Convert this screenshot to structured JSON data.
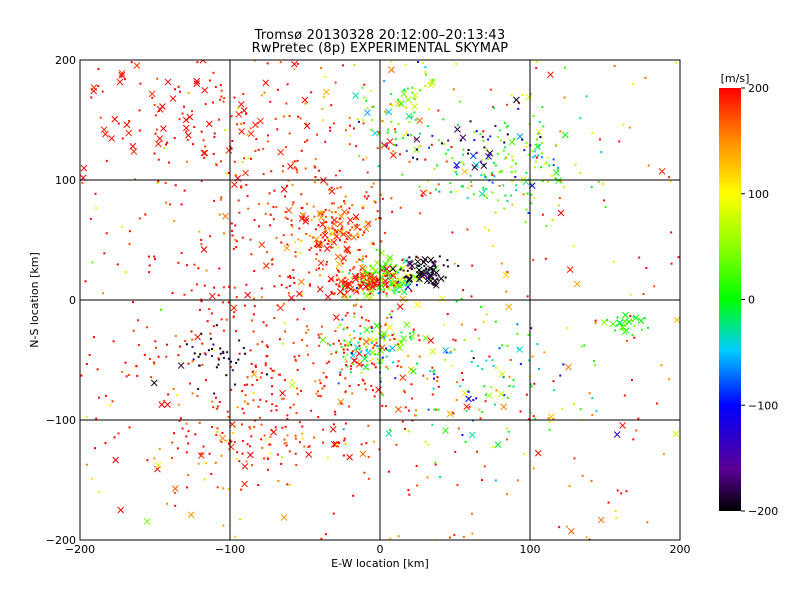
{
  "chart_data": {
    "type": "scatter",
    "title": "Tromsø 20130328 20:12:00–20:13:43",
    "subtitle": "RwPretec (8p) EXPERIMENTAL SKYMAP",
    "xlabel": "E-W location [km]",
    "ylabel": "N-S location [km]",
    "xlim": [
      -200,
      200
    ],
    "ylim": [
      -200,
      200
    ],
    "xticks": [
      -200,
      -100,
      0,
      100,
      200
    ],
    "yticks": [
      -200,
      -100,
      0,
      100,
      200
    ],
    "grid": true,
    "colorbar": {
      "label": "[m/s]",
      "min": -200,
      "max": 200,
      "ticks": [
        -200,
        -100,
        0,
        100,
        200
      ],
      "colormap": "rainbow (black-purple-blue-cyan-green-yellow-orange-red)"
    },
    "markers": {
      "small": "dot",
      "large": "x"
    },
    "clusters": [
      {
        "x": -30,
        "y": 58,
        "sx": 14,
        "sy": 14,
        "n": 150,
        "v": 170,
        "sv": 30,
        "xfrac": 0.25
      },
      {
        "x": 3,
        "y": 18,
        "sx": 14,
        "sy": 8,
        "n": 190,
        "v": 40,
        "sv": 60,
        "xfrac": 0.3
      },
      {
        "x": -10,
        "y": 15,
        "sx": 12,
        "sy": 6,
        "n": 70,
        "v": 200,
        "sv": 15,
        "xfrac": 0.3
      },
      {
        "x": 30,
        "y": 25,
        "sx": 8,
        "sy": 6,
        "n": 70,
        "v": -190,
        "sv": 15,
        "xfrac": 0.5
      },
      {
        "x": -5,
        "y": -40,
        "sx": 14,
        "sy": 12,
        "n": 130,
        "v": 30,
        "sv": 90,
        "xfrac": 0.25
      },
      {
        "x": -110,
        "y": -45,
        "sx": 15,
        "sy": 15,
        "n": 40,
        "v": -190,
        "sv": 15,
        "xfrac": 0.1
      },
      {
        "x": 85,
        "y": 110,
        "sx": 25,
        "sy": 20,
        "n": 170,
        "v": 20,
        "sv": 50,
        "xfrac": 0.1
      },
      {
        "x": -140,
        "y": 165,
        "sx": 35,
        "sy": 30,
        "n": 120,
        "v": 195,
        "sv": 10,
        "xfrac": 0.5
      },
      {
        "x": 15,
        "y": 160,
        "sx": 15,
        "sy": 20,
        "n": 90,
        "v": 40,
        "sv": 60,
        "xfrac": 0.15
      },
      {
        "x": -70,
        "y": -60,
        "sx": 60,
        "sy": 40,
        "n": 330,
        "v": 190,
        "sv": 20,
        "xfrac": 0.05
      },
      {
        "x": 70,
        "y": -70,
        "sx": 40,
        "sy": 30,
        "n": 120,
        "v": 0,
        "sv": 80,
        "xfrac": 0.1
      },
      {
        "x": 165,
        "y": -20,
        "sx": 8,
        "sy": 5,
        "n": 25,
        "v": 10,
        "sv": 20,
        "xfrac": 0.5
      },
      {
        "x": 60,
        "y": 130,
        "sx": 25,
        "sy": 15,
        "n": 40,
        "v": -160,
        "sv": 40,
        "xfrac": 0.2
      },
      {
        "x": -60,
        "y": 80,
        "sx": 40,
        "sy": 50,
        "n": 200,
        "v": 190,
        "sv": 20,
        "xfrac": 0.05
      },
      {
        "x": -80,
        "y": -115,
        "sx": 30,
        "sy": 20,
        "n": 60,
        "v": 170,
        "sv": 40,
        "xfrac": 0.1
      }
    ],
    "background": {
      "n": 400,
      "v": 180,
      "sv": 60,
      "xfrac": 0.15
    }
  }
}
